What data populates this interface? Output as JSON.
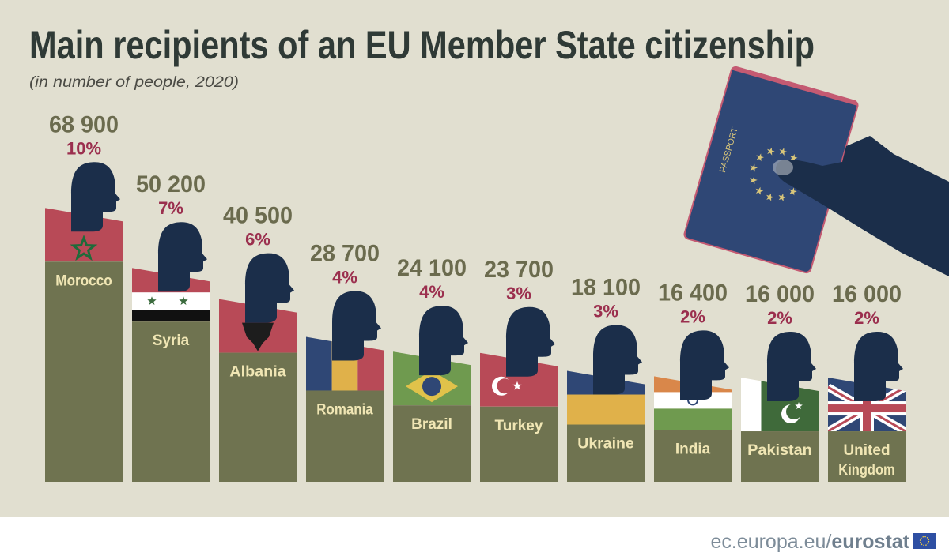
{
  "chart_data": {
    "type": "bar",
    "title": "Main recipients of an EU Member State citizenship",
    "subtitle": "(in number of people, 2020)",
    "categories": [
      "Morocco",
      "Syria",
      "Albania",
      "Romania",
      "Brazil",
      "Turkey",
      "Ukraine",
      "India",
      "Pakistan",
      "United Kingdom"
    ],
    "category_lines": [
      [
        "Morocco"
      ],
      [
        "Syria"
      ],
      [
        "Albania"
      ],
      [
        "Romania"
      ],
      [
        "Brazil"
      ],
      [
        "Turkey"
      ],
      [
        "Ukraine"
      ],
      [
        "India"
      ],
      [
        "Pakistan"
      ],
      [
        "United",
        "Kingdom"
      ]
    ],
    "values": [
      68900,
      50200,
      40500,
      28700,
      24100,
      23700,
      18100,
      16400,
      16000,
      16000
    ],
    "value_labels": [
      "68 900",
      "50 200",
      "40 500",
      "28 700",
      "24 100",
      "23 700",
      "18 100",
      "16 400",
      "16 000",
      "16 000"
    ],
    "share_labels": [
      "10%",
      "7%",
      "6%",
      "4%",
      "4%",
      "3%",
      "3%",
      "2%",
      "2%",
      "2%"
    ],
    "flags": [
      "morocco",
      "syria",
      "albania",
      "romania",
      "brazil",
      "turkey",
      "ukraine",
      "india",
      "pakistan",
      "uk"
    ],
    "colors": {
      "bar": "#6f7350",
      "value": "#6b6b4e",
      "share": "#9b2f4e",
      "head": "#1b2e4a",
      "background": "#e1dfd0"
    }
  },
  "illustration": {
    "passport_label": "PASSPORT"
  },
  "footer": {
    "site": "ec.europa.eu/",
    "brand": "eurostat"
  }
}
